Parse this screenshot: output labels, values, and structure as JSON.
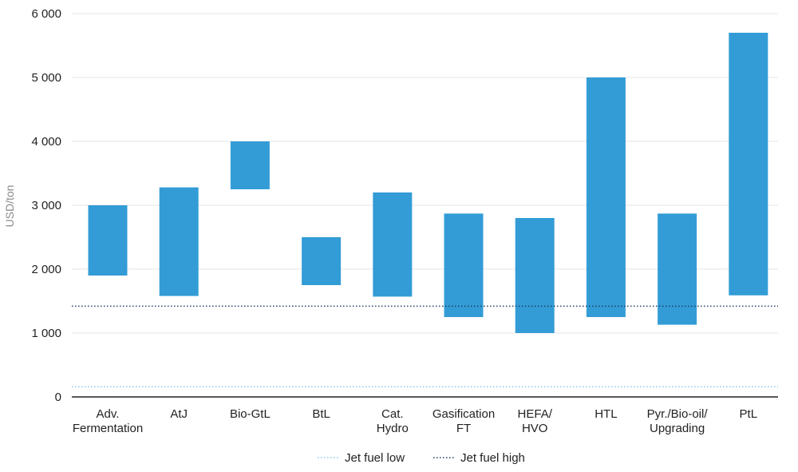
{
  "chart_data": {
    "type": "bar",
    "subtype": "floating-range",
    "ylabel": "USD/ton",
    "ylim": [
      0,
      6000
    ],
    "yticks": [
      0,
      1000,
      2000,
      3000,
      4000,
      5000,
      6000
    ],
    "ytick_labels": [
      "0",
      "1 000",
      "2 000",
      "3 000",
      "4 000",
      "5 000",
      "6 000"
    ],
    "grid": true,
    "categories": [
      [
        "Adv.",
        "Fermentation"
      ],
      [
        "AtJ"
      ],
      [
        "Bio-GtL"
      ],
      [
        "BtL"
      ],
      [
        "Cat.",
        "Hydro"
      ],
      [
        "Gasification",
        "FT"
      ],
      [
        "HEFA/",
        "HVO"
      ],
      [
        "HTL"
      ],
      [
        "Pyr./Bio-oil/",
        "Upgrading"
      ],
      [
        "PtL"
      ]
    ],
    "ranges": [
      [
        1900,
        3000
      ],
      [
        1580,
        3280
      ],
      [
        3250,
        4000
      ],
      [
        1750,
        2500
      ],
      [
        1570,
        3200
      ],
      [
        1250,
        2870
      ],
      [
        1000,
        2800
      ],
      [
        1250,
        5000
      ],
      [
        1130,
        2870
      ],
      [
        1590,
        5700
      ]
    ],
    "bar_color": "#339cd6",
    "reference_lines": [
      {
        "name": "Jet fuel low",
        "value": 160,
        "color": "#8ecbe8",
        "style": "dotted"
      },
      {
        "name": "Jet fuel high",
        "value": 1420,
        "color": "#1f3f66",
        "style": "dotted"
      }
    ],
    "legend_position": "bottom-center"
  }
}
